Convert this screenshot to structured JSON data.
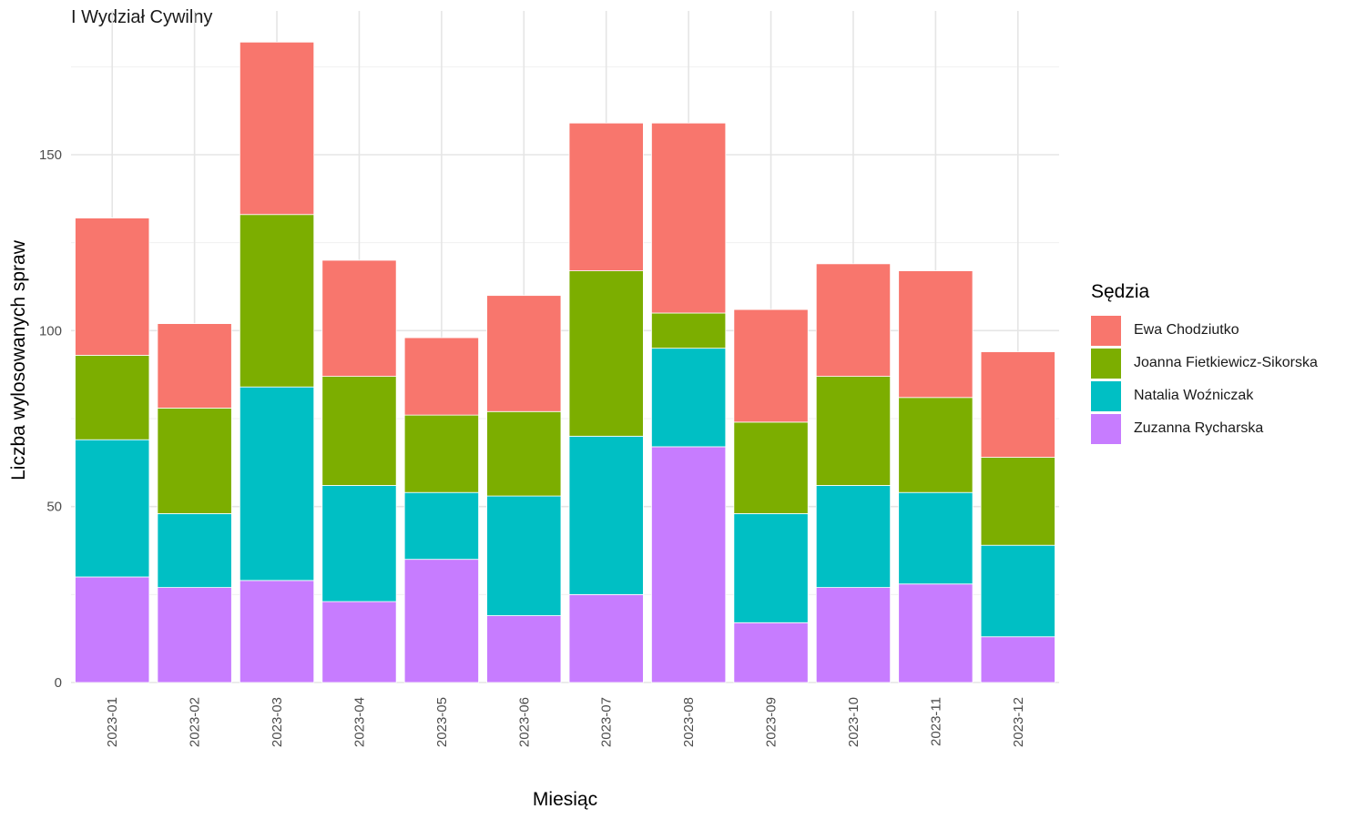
{
  "chart_data": {
    "type": "bar",
    "stacked": true,
    "subtitle": "I Wydział Cywilny",
    "xlabel": "Miesiąc",
    "ylabel": "Liczba wylosowanych spraw",
    "ylim": [
      0,
      190
    ],
    "yticks": [
      0,
      50,
      100,
      150
    ],
    "ytick_labels": [
      "0",
      "50",
      "100",
      "150"
    ],
    "grid": true,
    "legend_title": "Sędzia",
    "legend_position": "right",
    "categories": [
      "2023-01",
      "2023-02",
      "2023-03",
      "2023-04",
      "2023-05",
      "2023-06",
      "2023-07",
      "2023-08",
      "2023-09",
      "2023-10",
      "2023-11",
      "2023-12"
    ],
    "series": [
      {
        "name": "Zuzanna Rycharska",
        "color": "#C77CFF",
        "values": [
          30,
          27,
          29,
          23,
          35,
          19,
          25,
          67,
          17,
          27,
          28,
          13
        ]
      },
      {
        "name": "Natalia Woźniczak",
        "color": "#00BFC4",
        "values": [
          39,
          21,
          55,
          33,
          19,
          34,
          45,
          28,
          31,
          29,
          26,
          26
        ]
      },
      {
        "name": "Joanna Fietkiewicz-Sikorska",
        "color": "#7CAE00",
        "values": [
          24,
          30,
          49,
          31,
          22,
          24,
          47,
          10,
          26,
          31,
          27,
          25
        ]
      },
      {
        "name": "Ewa Chodziutko",
        "color": "#F8766D",
        "values": [
          39,
          24,
          49,
          33,
          22,
          33,
          42,
          54,
          32,
          32,
          36,
          30
        ]
      }
    ]
  },
  "legend": {
    "title": "Sędzia",
    "items": [
      {
        "label": "Ewa Chodziutko",
        "color": "#F8766D"
      },
      {
        "label": "Joanna Fietkiewicz-Sikorska",
        "color": "#7CAE00"
      },
      {
        "label": "Natalia Woźniczak",
        "color": "#00BFC4"
      },
      {
        "label": "Zuzanna Rycharska",
        "color": "#C77CFF"
      }
    ]
  }
}
